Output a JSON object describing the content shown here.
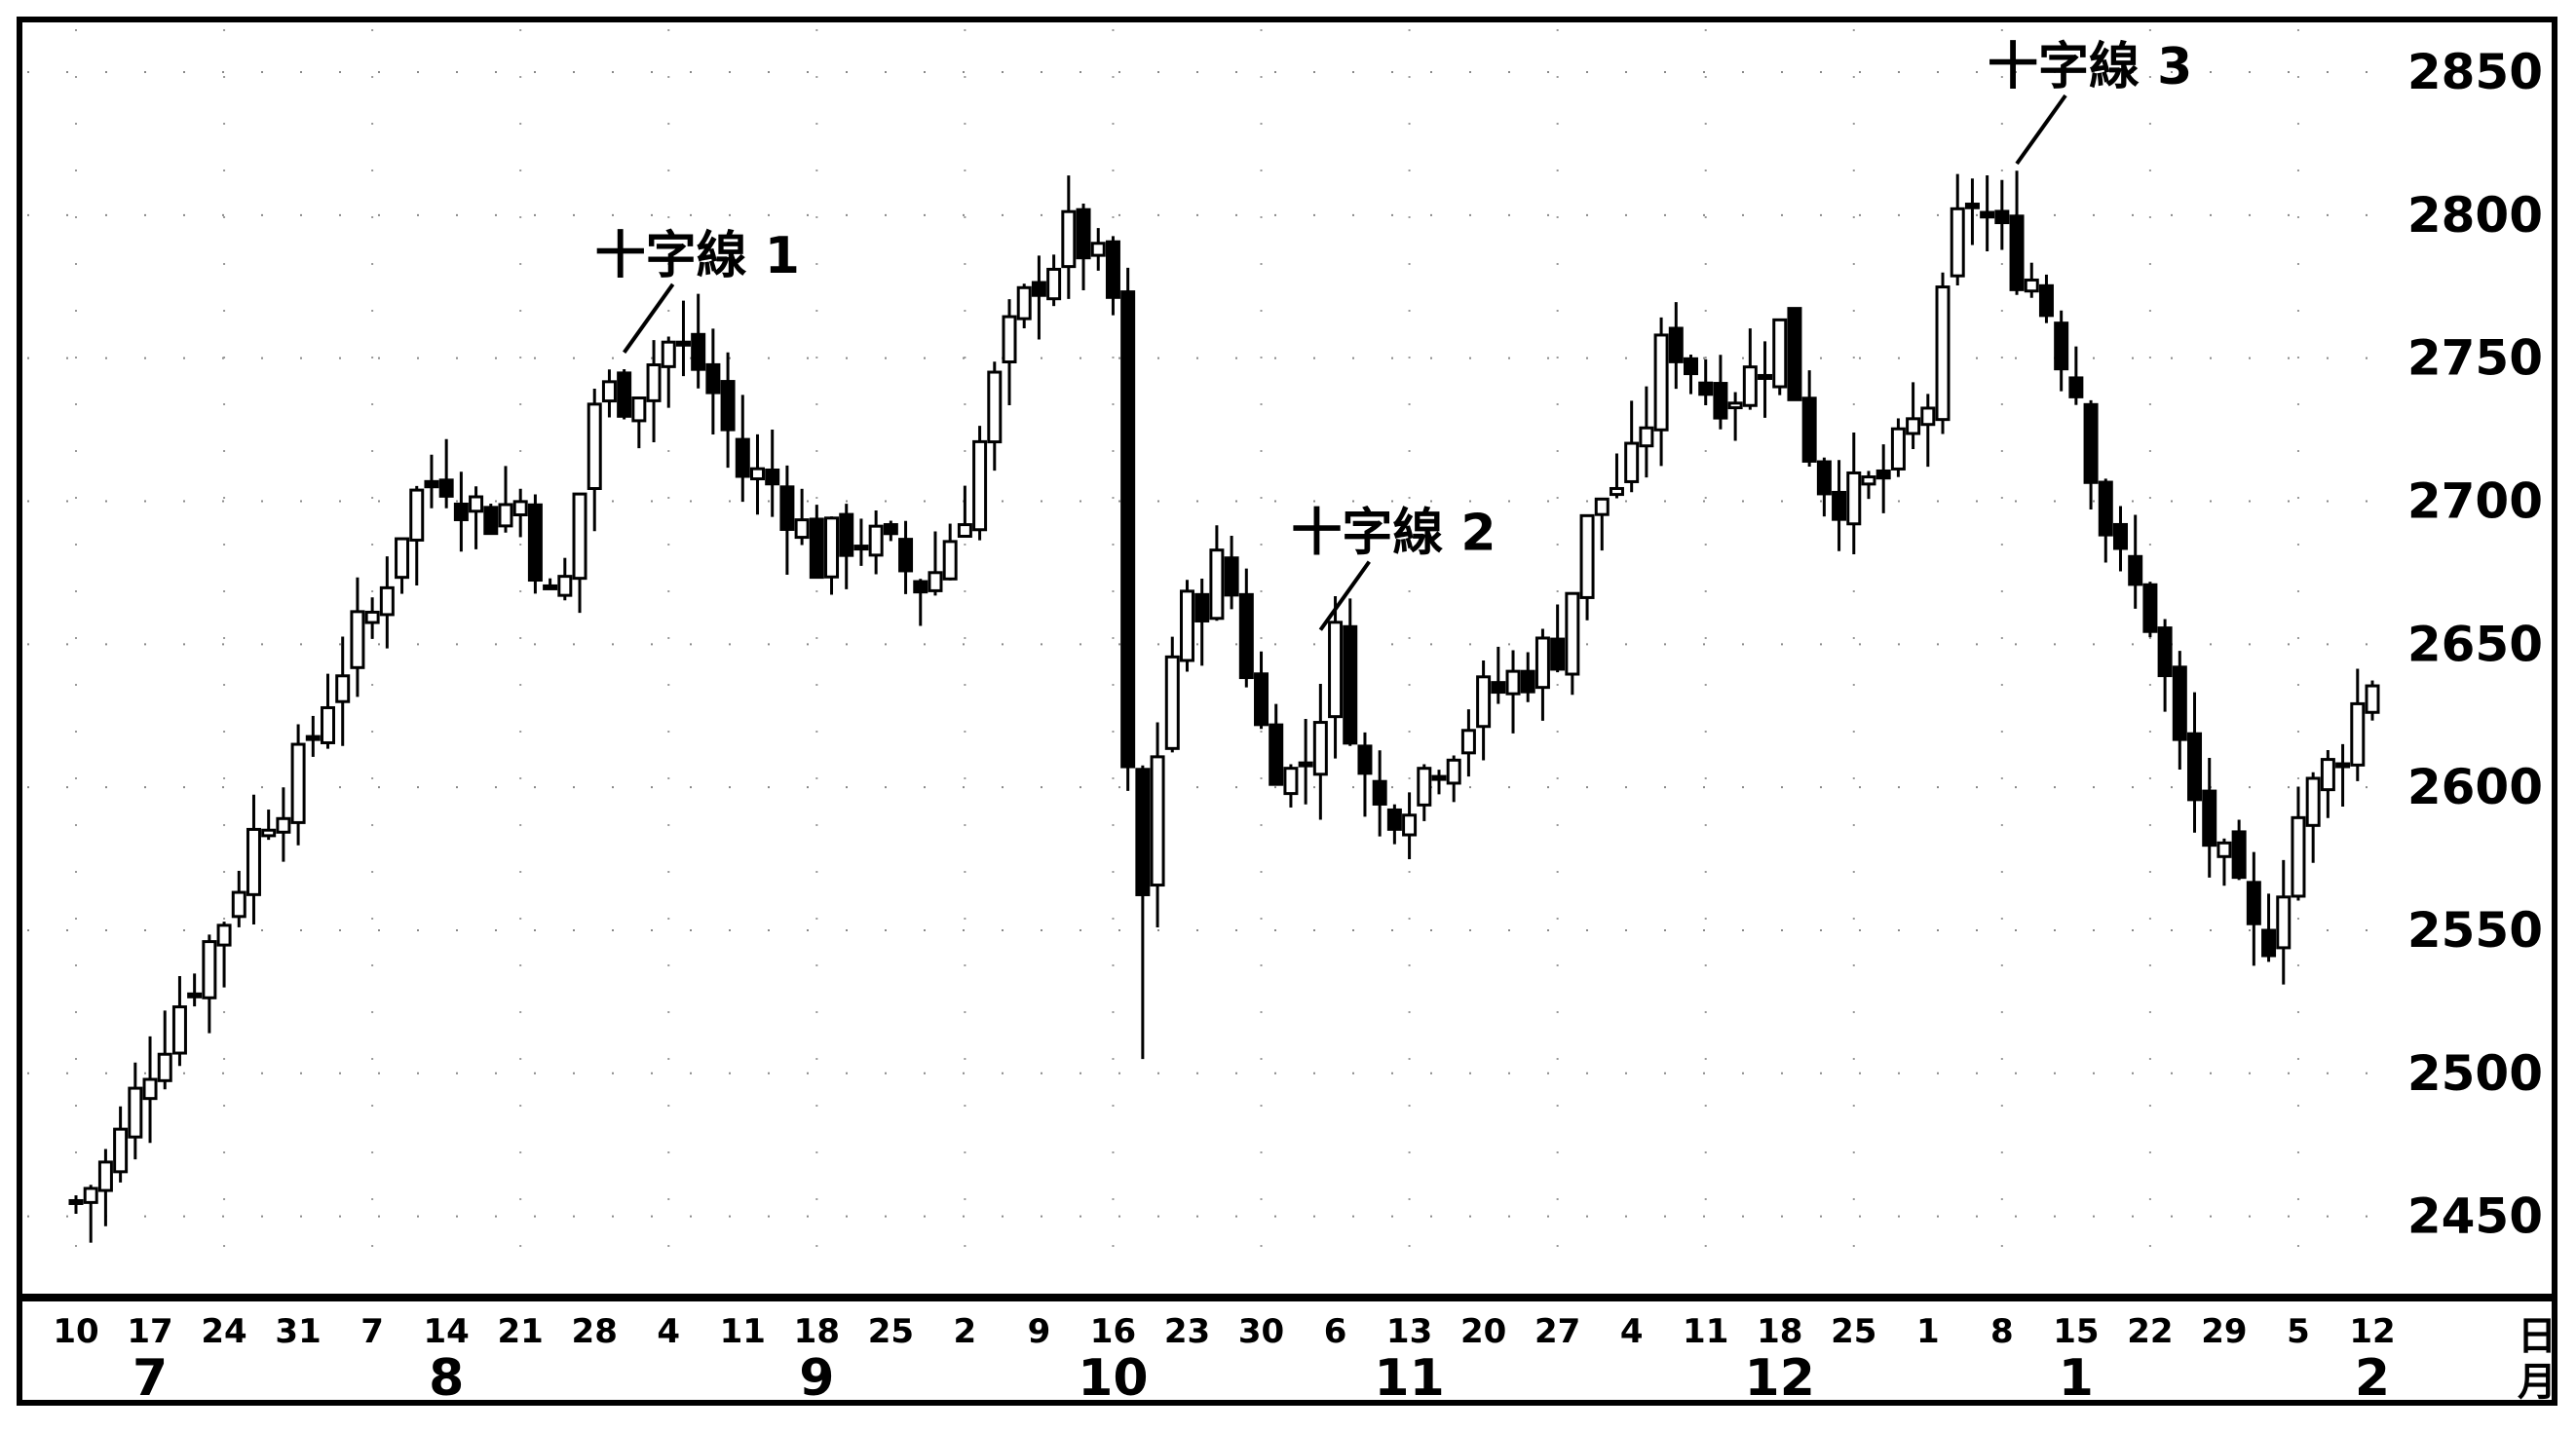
{
  "chart_data": {
    "type": "candlestick",
    "title": "",
    "xlabel": "",
    "ylabel": "",
    "ylim": [
      2425,
      2865
    ],
    "y_ticks": [
      2850,
      2800,
      2750,
      2700,
      2650,
      2600,
      2550,
      2500,
      2450
    ],
    "x_unit_label": [
      "日",
      "月"
    ],
    "day_ticks": [
      "10",
      "17",
      "24",
      "31",
      "7",
      "14",
      "21",
      "28",
      "4",
      "11",
      "18",
      "25",
      "2",
      "9",
      "16",
      "23",
      "30",
      "6",
      "13",
      "20",
      "27",
      "4",
      "11",
      "18",
      "25",
      "1",
      "8",
      "15",
      "22",
      "29",
      "5",
      "12"
    ],
    "month_ticks": [
      {
        "label": "7",
        "week_index": 1
      },
      {
        "label": "8",
        "week_index": 5
      },
      {
        "label": "9",
        "week_index": 10
      },
      {
        "label": "10",
        "week_index": 14
      },
      {
        "label": "11",
        "week_index": 18
      },
      {
        "label": "12",
        "week_index": 23
      },
      {
        "label": "1",
        "week_index": 27
      },
      {
        "label": "2",
        "week_index": 31
      }
    ],
    "annotations": [
      {
        "text": "十字線 1",
        "week_index": 7.4,
        "value": 2752
      },
      {
        "text": "十字線 2",
        "week_index": 16.8,
        "value": 2655
      },
      {
        "text": "十字線 3",
        "week_index": 26.2,
        "value": 2818
      }
    ],
    "close_path": [
      [
        0,
        2455
      ],
      [
        0.5,
        2470
      ],
      [
        1,
        2505
      ],
      [
        1.5,
        2530
      ],
      [
        2,
        2555
      ],
      [
        2.5,
        2590
      ],
      [
        3,
        2605
      ],
      [
        3.5,
        2640
      ],
      [
        4,
        2660
      ],
      [
        4.5,
        2700
      ],
      [
        5,
        2710
      ],
      [
        5.5,
        2695
      ],
      [
        6,
        2700
      ],
      [
        6.5,
        2655
      ],
      [
        7,
        2735
      ],
      [
        7.5,
        2740
      ],
      [
        8,
        2755
      ],
      [
        8.5,
        2745
      ],
      [
        9,
        2710
      ],
      [
        9.5,
        2705
      ],
      [
        10,
        2680
      ],
      [
        10.5,
        2690
      ],
      [
        11,
        2680
      ],
      [
        11.5,
        2670
      ],
      [
        12,
        2700
      ],
      [
        12.5,
        2750
      ],
      [
        13,
        2780
      ],
      [
        13.5,
        2795
      ],
      [
        14,
        2770
      ],
      [
        14.2,
        2600
      ],
      [
        14.4,
        2560
      ],
      [
        14.7,
        2640
      ],
      [
        15,
        2660
      ],
      [
        15.5,
        2680
      ],
      [
        16,
        2620
      ],
      [
        16.5,
        2600
      ],
      [
        17,
        2650
      ],
      [
        17.5,
        2590
      ],
      [
        18,
        2600
      ],
      [
        18.5,
        2615
      ],
      [
        19,
        2630
      ],
      [
        19.5,
        2640
      ],
      [
        20,
        2650
      ],
      [
        20.5,
        2700
      ],
      [
        21,
        2710
      ],
      [
        21.5,
        2760
      ],
      [
        22,
        2740
      ],
      [
        22.5,
        2740
      ],
      [
        23,
        2760
      ],
      [
        23.5,
        2710
      ],
      [
        24,
        2700
      ],
      [
        24.5,
        2710
      ],
      [
        25,
        2735
      ],
      [
        25.5,
        2810
      ],
      [
        26,
        2790
      ],
      [
        26.5,
        2775
      ],
      [
        27,
        2740
      ],
      [
        27.5,
        2680
      ],
      [
        28,
        2660
      ],
      [
        28.5,
        2600
      ],
      [
        29,
        2570
      ],
      [
        29.5,
        2540
      ],
      [
        30,
        2590
      ],
      [
        30.5,
        2610
      ],
      [
        31,
        2640
      ]
    ]
  }
}
